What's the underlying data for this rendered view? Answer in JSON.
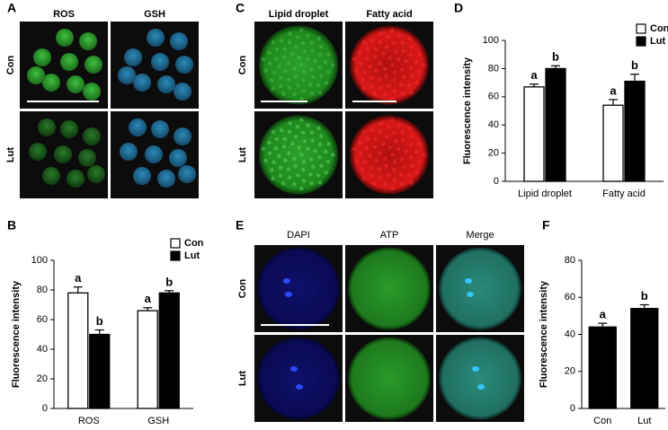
{
  "chart_data": [
    {
      "type": "bar",
      "panel": "B",
      "ylabel": "Fluorescence intensity",
      "categories": [
        "ROS",
        "GSH"
      ],
      "series": [
        {
          "name": "Con",
          "color": "#ffffff",
          "values": [
            78,
            66
          ],
          "errors": [
            4,
            2
          ],
          "letters": [
            "a",
            "a"
          ]
        },
        {
          "name": "Lut",
          "color": "#000000",
          "values": [
            50,
            78
          ],
          "errors": [
            3,
            1.5
          ],
          "letters": [
            "b",
            "b"
          ]
        }
      ],
      "ylim": [
        0,
        100
      ],
      "yticks": [
        0,
        20,
        40,
        60,
        80,
        100
      ]
    },
    {
      "type": "bar",
      "panel": "D",
      "ylabel": "Fluorescence intensity",
      "categories": [
        "Lipid droplet",
        "Fatty acid"
      ],
      "series": [
        {
          "name": "Con",
          "color": "#ffffff",
          "values": [
            67,
            54
          ],
          "errors": [
            2,
            4
          ],
          "letters": [
            "a",
            "a"
          ]
        },
        {
          "name": "Lut",
          "color": "#000000",
          "values": [
            80,
            71
          ],
          "errors": [
            2,
            5
          ],
          "letters": [
            "b",
            "b"
          ]
        }
      ],
      "ylim": [
        0,
        100
      ],
      "yticks": [
        0,
        20,
        40,
        60,
        80,
        100
      ]
    },
    {
      "type": "bar",
      "panel": "F",
      "ylabel": "Fluorescence intensity",
      "categories": [
        "Con",
        "Lut"
      ],
      "series": [
        {
          "color": "#000000",
          "values": [
            44,
            54
          ],
          "errors": [
            2,
            2
          ],
          "letters": [
            "a",
            "b"
          ]
        }
      ],
      "ylim": [
        0,
        80
      ],
      "yticks": [
        0,
        20,
        40,
        60,
        80
      ]
    }
  ],
  "image_panels": [
    {
      "panel": "A",
      "columns": [
        "ROS",
        "GSH"
      ],
      "rows": [
        "Con",
        "Lut"
      ]
    },
    {
      "panel": "C",
      "columns": [
        "Lipid droplet",
        "Fatty acid"
      ],
      "rows": [
        "Con",
        "Lut"
      ]
    },
    {
      "panel": "E",
      "columns": [
        "DAPI",
        "ATP",
        "Merge"
      ],
      "rows": [
        "Con",
        "Lut"
      ]
    }
  ]
}
